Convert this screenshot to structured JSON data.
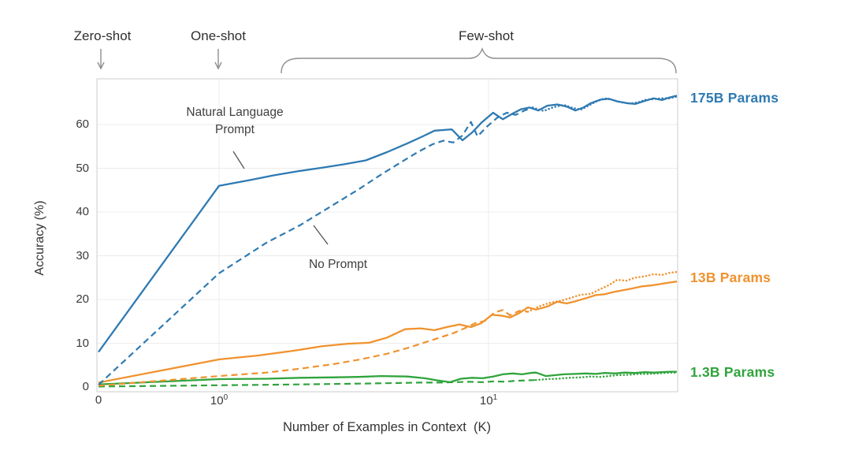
{
  "figure_title": "GPT-3 style in-context learning curves",
  "annotations": {
    "zero_shot": "Zero-shot",
    "one_shot": "One-shot",
    "few_shot": "Few-shot",
    "natural_language_prompt": "Natural Language Prompt",
    "no_prompt": "No Prompt"
  },
  "colors": {
    "blue": "#2e7ab2",
    "orange": "#f0922e",
    "green": "#2fa43c",
    "grid": "#ececec",
    "axis_border": "#d6d6d6",
    "annotation_gray": "#8f8f8f",
    "text": "#3a3a3a"
  },
  "chart_data": {
    "type": "line",
    "title": "",
    "xlabel": "Number of Examples in Context  (K)",
    "ylabel": "Accuracy (%)",
    "x_scale": "log (with 0 at origin, linear 0→1)",
    "xlim": [
      0,
      50
    ],
    "ylim": [
      0,
      71
    ],
    "grid": true,
    "legend_position": "right-edge labels + in-plot notes",
    "line_style_meaning": {
      "solid": "Natural Language Prompt",
      "dashed": "No Prompt",
      "dotted": "No Prompt (continuation)"
    },
    "x_ticks": [
      {
        "value": 0,
        "base": "0",
        "exponent": ""
      },
      {
        "value": 1,
        "base": "10",
        "exponent": "0"
      },
      {
        "value": 10,
        "base": "10",
        "exponent": "1"
      }
    ],
    "y_ticks": [
      0,
      10,
      20,
      30,
      40,
      50,
      60
    ],
    "series_labels": [
      {
        "text": "175B Params",
        "color": "#2e7ab2"
      },
      {
        "text": "13B Params",
        "color": "#f0922e"
      },
      {
        "text": "1.3B Params",
        "color": "#2fa43c"
      }
    ],
    "series": [
      {
        "name": "1.3B Params — No Prompt",
        "model": "1.3B",
        "style": "dashed",
        "color": "#2fa43c",
        "points": [
          [
            0,
            0.1
          ],
          [
            1,
            0.4
          ],
          [
            1.5,
            0.5
          ],
          [
            2,
            0.6
          ],
          [
            2.7,
            0.7
          ],
          [
            3.5,
            0.8
          ],
          [
            4.5,
            0.9
          ],
          [
            5.5,
            1.0
          ],
          [
            6.5,
            1.0
          ],
          [
            7.5,
            1.1
          ],
          [
            8.5,
            1.2
          ],
          [
            9.5,
            1.1
          ],
          [
            10.5,
            1.3
          ],
          [
            11.5,
            1.2
          ],
          [
            12.5,
            1.4
          ],
          [
            13.7,
            1.5
          ],
          [
            15,
            1.6
          ]
        ]
      },
      {
        "name": "1.3B Params — No Prompt (continuation)",
        "model": "1.3B",
        "style": "dotted",
        "color": "#2fa43c",
        "points": [
          [
            15,
            1.6
          ],
          [
            16.5,
            1.8
          ],
          [
            18,
            1.9
          ],
          [
            20,
            2.1
          ],
          [
            22,
            2.2
          ],
          [
            24,
            2.4
          ],
          [
            26,
            2.3
          ],
          [
            28,
            2.5
          ],
          [
            30,
            2.7
          ],
          [
            33,
            2.8
          ],
          [
            36,
            3.0
          ],
          [
            39,
            3.0
          ],
          [
            42,
            3.1
          ],
          [
            45,
            3.2
          ],
          [
            48,
            3.3
          ],
          [
            50,
            3.3
          ]
        ]
      },
      {
        "name": "1.3B Params — Natural Language Prompt",
        "model": "1.3B",
        "style": "solid",
        "color": "#2fa43c",
        "points": [
          [
            0,
            0.6
          ],
          [
            1,
            1.8
          ],
          [
            1.5,
            1.9
          ],
          [
            2,
            2.1
          ],
          [
            2.6,
            2.2
          ],
          [
            3.3,
            2.3
          ],
          [
            4,
            2.5
          ],
          [
            5,
            2.4
          ],
          [
            5.8,
            2.0
          ],
          [
            6.5,
            1.5
          ],
          [
            7.2,
            1.1
          ],
          [
            7.9,
            1.9
          ],
          [
            8.7,
            2.1
          ],
          [
            9.5,
            2.0
          ],
          [
            10.4,
            2.4
          ],
          [
            11.3,
            2.9
          ],
          [
            12.3,
            3.1
          ],
          [
            13.3,
            2.9
          ],
          [
            14.3,
            3.2
          ],
          [
            15,
            3.3
          ],
          [
            16.3,
            2.5
          ],
          [
            17.6,
            2.7
          ],
          [
            19,
            2.9
          ],
          [
            21,
            3.0
          ],
          [
            23,
            3.1
          ],
          [
            25,
            3.0
          ],
          [
            27,
            3.2
          ],
          [
            29.5,
            3.1
          ],
          [
            32,
            3.3
          ],
          [
            35,
            3.2
          ],
          [
            38,
            3.4
          ],
          [
            41,
            3.3
          ],
          [
            44,
            3.4
          ],
          [
            47,
            3.5
          ],
          [
            50,
            3.5
          ]
        ]
      },
      {
        "name": "13B Params — No Prompt",
        "model": "13B",
        "style": "dashed",
        "color": "#f0922e",
        "points": [
          [
            0,
            0.3
          ],
          [
            1,
            2.5
          ],
          [
            1.5,
            3.3
          ],
          [
            2,
            4.2
          ],
          [
            2.7,
            5.3
          ],
          [
            3.4,
            6.4
          ],
          [
            4.2,
            7.6
          ],
          [
            5,
            8.9
          ],
          [
            5.8,
            10.2
          ],
          [
            6.6,
            11.3
          ],
          [
            7.4,
            12.3
          ],
          [
            8.2,
            13.5
          ],
          [
            9,
            14.7
          ],
          [
            9.7,
            15.1
          ],
          [
            10.5,
            17.0
          ],
          [
            11.3,
            17.6
          ],
          [
            12,
            16.4
          ],
          [
            13,
            17.4
          ],
          [
            14,
            17.2
          ]
        ]
      },
      {
        "name": "13B Params — No Prompt (continuation)",
        "model": "13B",
        "style": "dotted",
        "color": "#f0922e",
        "points": [
          [
            14,
            17.2
          ],
          [
            15.5,
            18.5
          ],
          [
            17,
            19.3
          ],
          [
            18.5,
            19.7
          ],
          [
            20,
            20.3
          ],
          [
            22,
            21.1
          ],
          [
            24,
            21.3
          ],
          [
            26,
            22.4
          ],
          [
            28,
            23.3
          ],
          [
            30,
            24.5
          ],
          [
            32.5,
            24.3
          ],
          [
            35,
            25.0
          ],
          [
            38,
            25.3
          ],
          [
            41,
            25.8
          ],
          [
            44,
            25.6
          ],
          [
            47,
            26.1
          ],
          [
            50,
            26.3
          ]
        ]
      },
      {
        "name": "13B Params — Natural Language Prompt",
        "model": "13B",
        "style": "solid",
        "color": "#f0922e",
        "points": [
          [
            0,
            1.0
          ],
          [
            1,
            6.3
          ],
          [
            1.4,
            7.2
          ],
          [
            1.9,
            8.3
          ],
          [
            2.4,
            9.3
          ],
          [
            3,
            9.9
          ],
          [
            3.6,
            10.1
          ],
          [
            4.2,
            11.3
          ],
          [
            4.9,
            13.2
          ],
          [
            5.6,
            13.4
          ],
          [
            6.3,
            13.0
          ],
          [
            7,
            13.7
          ],
          [
            7.8,
            14.3
          ],
          [
            8.6,
            13.7
          ],
          [
            9.4,
            14.6
          ],
          [
            10.3,
            16.5
          ],
          [
            11.2,
            16.3
          ],
          [
            12,
            15.9
          ],
          [
            13,
            16.9
          ],
          [
            14,
            18.2
          ],
          [
            15,
            17.7
          ],
          [
            16.5,
            18.4
          ],
          [
            18,
            19.5
          ],
          [
            19.5,
            19.1
          ],
          [
            21,
            19.6
          ],
          [
            23,
            20.3
          ],
          [
            25,
            21.0
          ],
          [
            27,
            21.2
          ],
          [
            29,
            21.7
          ],
          [
            31.5,
            22.1
          ],
          [
            34,
            22.5
          ],
          [
            37,
            23.0
          ],
          [
            40,
            23.2
          ],
          [
            43,
            23.5
          ],
          [
            46,
            23.8
          ],
          [
            50,
            24.1
          ]
        ]
      },
      {
        "name": "175B Params — No Prompt",
        "model": "175B",
        "style": "dashed",
        "color": "#2e7ab2",
        "points": [
          [
            0,
            0.5
          ],
          [
            1,
            26
          ],
          [
            1.5,
            33
          ],
          [
            2,
            37
          ],
          [
            2.6,
            41.3
          ],
          [
            3.3,
            45.2
          ],
          [
            4,
            48.6
          ],
          [
            4.8,
            51.6
          ],
          [
            5.5,
            53.8
          ],
          [
            6.2,
            55.5
          ],
          [
            6.8,
            56.3
          ],
          [
            7.4,
            55.9
          ],
          [
            8,
            57.5
          ],
          [
            8.6,
            60.6
          ],
          [
            9.1,
            57.3
          ],
          [
            9.9,
            59.6
          ],
          [
            10.8,
            61.6
          ],
          [
            11.7,
            62.7
          ],
          [
            12.6,
            62.2
          ],
          [
            13.6,
            63.2
          ],
          [
            14.6,
            63.9
          ]
        ]
      },
      {
        "name": "175B Params — No Prompt (continuation)",
        "model": "175B",
        "style": "dotted",
        "color": "#2e7ab2",
        "points": [
          [
            14.6,
            63.9
          ],
          [
            16,
            63.1
          ],
          [
            17.5,
            64.0
          ],
          [
            19,
            64.5
          ],
          [
            20.5,
            63.8
          ],
          [
            22,
            63.4
          ],
          [
            23.5,
            64.3
          ],
          [
            25,
            65.2
          ],
          [
            27,
            66.0
          ],
          [
            29,
            65.6
          ],
          [
            31,
            65.1
          ],
          [
            33.5,
            64.8
          ],
          [
            36,
            65.1
          ],
          [
            38.5,
            65.7
          ],
          [
            41,
            65.8
          ],
          [
            44,
            66.0
          ],
          [
            47,
            66.0
          ],
          [
            50,
            66.4
          ]
        ]
      },
      {
        "name": "175B Params — Natural Language Prompt",
        "model": "175B",
        "style": "solid",
        "color": "#2e7ab2",
        "points": [
          [
            0,
            8
          ],
          [
            1,
            46
          ],
          [
            1.3,
            47.3
          ],
          [
            1.6,
            48.4
          ],
          [
            2,
            49.4
          ],
          [
            2.4,
            50.1
          ],
          [
            2.9,
            50.9
          ],
          [
            3.5,
            51.8
          ],
          [
            4.2,
            53.7
          ],
          [
            5,
            55.7
          ],
          [
            5.7,
            57.3
          ],
          [
            6.3,
            58.6
          ],
          [
            7.3,
            58.9
          ],
          [
            8,
            56.4
          ],
          [
            8.7,
            58.2
          ],
          [
            9.4,
            60.4
          ],
          [
            10.4,
            62.7
          ],
          [
            11.3,
            61.2
          ],
          [
            12.2,
            62.4
          ],
          [
            13.2,
            63.5
          ],
          [
            14.2,
            63.9
          ],
          [
            15.3,
            63.2
          ],
          [
            16.5,
            64.3
          ],
          [
            18,
            64.6
          ],
          [
            19.5,
            64.1
          ],
          [
            21,
            63.2
          ],
          [
            22.5,
            63.9
          ],
          [
            24,
            64.9
          ],
          [
            26,
            65.7
          ],
          [
            28,
            65.9
          ],
          [
            30,
            65.3
          ],
          [
            32.5,
            64.9
          ],
          [
            35,
            64.7
          ],
          [
            38,
            65.4
          ],
          [
            41,
            66.0
          ],
          [
            44,
            65.6
          ],
          [
            47,
            66.2
          ],
          [
            50,
            66.6
          ]
        ]
      }
    ]
  }
}
